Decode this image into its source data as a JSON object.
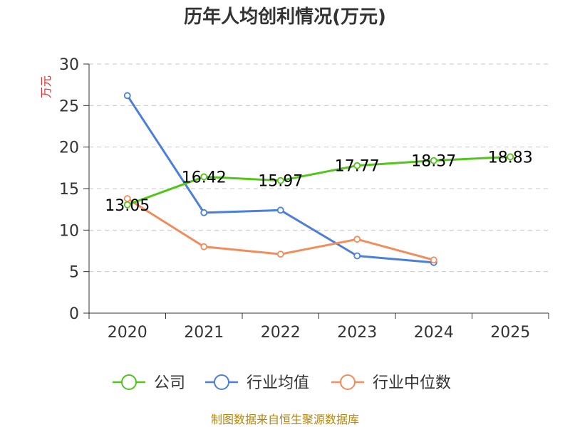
{
  "chart_data": {
    "type": "line",
    "title": "历年人均创利情况(万元)",
    "ylabel": "万元",
    "xlabel": "",
    "categories": [
      "2020",
      "2021",
      "2022",
      "2023",
      "2024",
      "2025"
    ],
    "ylim": [
      0,
      30
    ],
    "yticks": [
      0,
      5,
      10,
      15,
      20,
      25,
      30
    ],
    "grid": true,
    "legend_position": "bottom",
    "series": [
      {
        "name": "公司",
        "color": "#52c41a",
        "values": [
          13.05,
          16.42,
          15.97,
          17.77,
          18.37,
          18.83
        ],
        "labels": [
          "13.05",
          "16.42",
          "15.97",
          "17.77",
          "18.37",
          "18.83"
        ]
      },
      {
        "name": "行业均值",
        "color": "#4a7fdc",
        "values": [
          26.2,
          12.1,
          12.4,
          6.9,
          6.1,
          null
        ]
      },
      {
        "name": "行业中位数",
        "color": "#f28c5a",
        "values": [
          13.8,
          8.0,
          7.1,
          8.9,
          6.4,
          null
        ]
      }
    ],
    "source": "制图数据来自恒生聚源数据库"
  }
}
